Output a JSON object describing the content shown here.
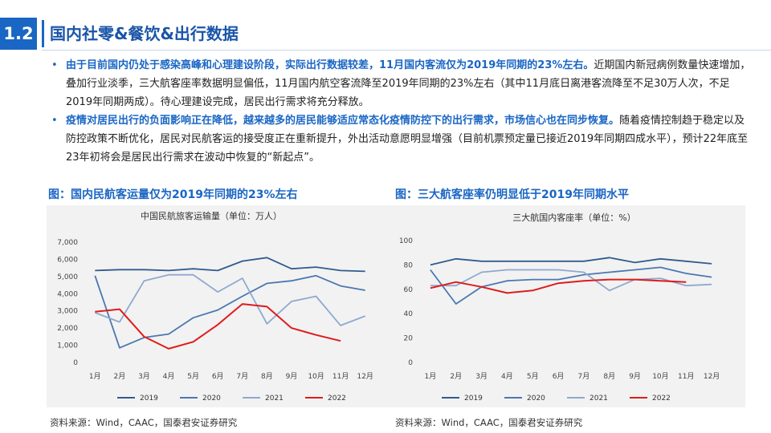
{
  "header": {
    "section_number": "1.2",
    "title": "国内社零&餐饮&出行数据"
  },
  "bullets": [
    {
      "highlight": "由于目前国内仍处于感染高峰和心理建设阶段，实际出行数据较差，11月国内客流仅为2019年同期的23%左右。",
      "text": "近期国内新冠病例数量快速增加，叠加行业淡季，三大航客座率数据明显偏低，11月国内航空客流降至2019年同期的23%左右（其中11月底日离港客流降至不足30万人次，不足2019年同期两成）。待心理建设完成，居民出行需求将充分释放。"
    },
    {
      "highlight": "疫情对居民出行的负面影响正在降低，越来越多的居民能够适应常态化疫情防控下的出行需求，市场信心也在同步恢复。",
      "text": "随着疫情控制趋于稳定以及防控政策不断优化，居民对民航客运的接受度正在重新提升，外出活动意愿明显增强（目前机票预定量已接近2019年同期四成水平），预计22年底至23年初将会是居民出行需求在波动中恢复的“新起点”。"
    }
  ],
  "figures": [
    {
      "caption": "图：国内民航客运量仅为2019年同期的23%左右",
      "source": "资料来源：Wind，CAAC，国泰君安证券研究"
    },
    {
      "caption": "图：三大航客座率仍明显低于2019年同期水平",
      "source": "资料来源：Wind，CAAC，国泰君安证券研究"
    }
  ],
  "colors": {
    "2019": "#2f5c8f",
    "2020": "#4a78b0",
    "2021": "#8ea9cf",
    "2022": "#e01b1b"
  },
  "chart_data": [
    {
      "type": "line",
      "title": "中国民航旅客运输量（单位：万人）",
      "categories": [
        "1月",
        "2月",
        "3月",
        "4月",
        "5月",
        "6月",
        "7月",
        "8月",
        "9月",
        "10月",
        "11月",
        "12月"
      ],
      "ylim": [
        0,
        7000
      ],
      "yticks": [
        0,
        1000,
        2000,
        3000,
        4000,
        5000,
        6000,
        7000
      ],
      "ytick_labels": [
        "0",
        "1,000",
        "2,000",
        "3,000",
        "4,000",
        "5,000",
        "6,000",
        "7,000"
      ],
      "legend": "bottom",
      "series": [
        {
          "name": "2019",
          "values": [
            5350,
            5400,
            5400,
            5350,
            5450,
            5350,
            5900,
            6100,
            5450,
            5550,
            5350,
            5300
          ]
        },
        {
          "name": "2020",
          "values": [
            5050,
            850,
            1450,
            1650,
            2600,
            3050,
            3850,
            4600,
            4750,
            5050,
            4450,
            4200
          ]
        },
        {
          "name": "2021",
          "values": [
            2900,
            2350,
            4750,
            5100,
            5100,
            4100,
            4900,
            2250,
            3550,
            3850,
            2150,
            2700
          ]
        },
        {
          "name": "2022",
          "values": [
            2950,
            3100,
            1500,
            800,
            1200,
            2200,
            3400,
            3250,
            2000,
            1600,
            1250,
            null
          ]
        }
      ]
    },
    {
      "type": "line",
      "title": "三大航国内客座率（单位：%）",
      "categories": [
        "1月",
        "2月",
        "3月",
        "4月",
        "5月",
        "6月",
        "7月",
        "8月",
        "9月",
        "10月",
        "11月",
        "12月"
      ],
      "ylim": [
        0,
        100
      ],
      "yticks": [
        0,
        20,
        40,
        60,
        80,
        100
      ],
      "ytick_labels": [
        "0",
        "20",
        "40",
        "60",
        "80",
        "100"
      ],
      "legend": "bottom",
      "series": [
        {
          "name": "2019",
          "values": [
            80,
            85,
            83,
            83,
            83,
            83,
            83,
            86,
            82,
            85,
            83,
            81
          ]
        },
        {
          "name": "2020",
          "values": [
            76,
            48,
            62,
            67,
            68,
            68,
            72,
            74,
            76,
            78,
            73,
            70
          ]
        },
        {
          "name": "2021",
          "values": [
            63,
            63,
            74,
            76,
            76,
            76,
            74,
            59,
            68,
            69,
            63,
            64
          ]
        },
        {
          "name": "2022",
          "values": [
            61,
            66,
            62,
            57,
            59,
            65,
            67,
            68,
            68,
            67,
            66,
            null
          ]
        }
      ]
    }
  ]
}
